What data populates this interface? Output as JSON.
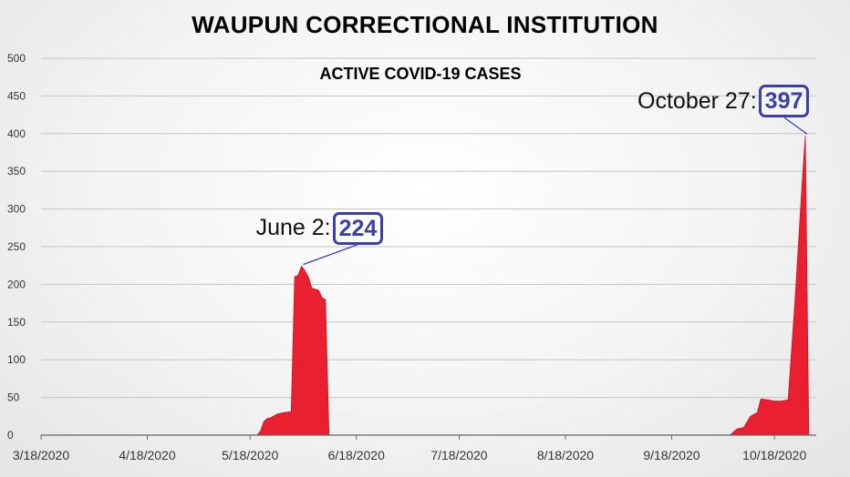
{
  "chart_data": {
    "type": "area",
    "title": "WAUPUN CORRECTIONAL INSTITUTION",
    "subtitle": "ACTIVE COVID-19 CASES",
    "xlabel": "",
    "ylabel": "",
    "ylim": [
      0,
      500
    ],
    "yticks": [
      0,
      50,
      100,
      150,
      200,
      250,
      300,
      350,
      400,
      450,
      500
    ],
    "xticks": [
      "3/18/2020",
      "4/18/2020",
      "5/18/2020",
      "6/18/2020",
      "7/18/2020",
      "8/18/2020",
      "9/18/2020",
      "10/18/2020"
    ],
    "xlim": [
      "2020-03-18",
      "2020-10-28"
    ],
    "grid": true,
    "fill_color": "#e8202f",
    "series": [
      {
        "name": "",
        "points": [
          {
            "x": "2020-03-18",
            "y": 0
          },
          {
            "x": "2020-05-20",
            "y": 0
          },
          {
            "x": "2020-05-21",
            "y": 5
          },
          {
            "x": "2020-05-22",
            "y": 18
          },
          {
            "x": "2020-05-23",
            "y": 22
          },
          {
            "x": "2020-05-24",
            "y": 23
          },
          {
            "x": "2020-05-26",
            "y": 28
          },
          {
            "x": "2020-05-28",
            "y": 30
          },
          {
            "x": "2020-05-30",
            "y": 31
          },
          {
            "x": "2020-05-31",
            "y": 210
          },
          {
            "x": "2020-06-01",
            "y": 212
          },
          {
            "x": "2020-06-02",
            "y": 224
          },
          {
            "x": "2020-06-03",
            "y": 218
          },
          {
            "x": "2020-06-04",
            "y": 210
          },
          {
            "x": "2020-06-05",
            "y": 195
          },
          {
            "x": "2020-06-07",
            "y": 192
          },
          {
            "x": "2020-06-08",
            "y": 182
          },
          {
            "x": "2020-06-09",
            "y": 180
          },
          {
            "x": "2020-06-10",
            "y": 0
          },
          {
            "x": "2020-10-05",
            "y": 0
          },
          {
            "x": "2020-10-07",
            "y": 8
          },
          {
            "x": "2020-10-09",
            "y": 10
          },
          {
            "x": "2020-10-11",
            "y": 25
          },
          {
            "x": "2020-10-13",
            "y": 30
          },
          {
            "x": "2020-10-14",
            "y": 48
          },
          {
            "x": "2020-10-16",
            "y": 47
          },
          {
            "x": "2020-10-18",
            "y": 45
          },
          {
            "x": "2020-10-20",
            "y": 45
          },
          {
            "x": "2020-10-22",
            "y": 47
          },
          {
            "x": "2020-10-24",
            "y": 180
          },
          {
            "x": "2020-10-26",
            "y": 330
          },
          {
            "x": "2020-10-27",
            "y": 397
          },
          {
            "x": "2020-10-28",
            "y": 0
          }
        ]
      }
    ],
    "annotations": [
      {
        "label": "June 2:",
        "value": "224",
        "x": "2020-06-02",
        "y": 224
      },
      {
        "label": "October 27:",
        "value": "397",
        "x": "2020-10-27",
        "y": 397
      }
    ],
    "annotation_color": "#3d3fa8"
  }
}
